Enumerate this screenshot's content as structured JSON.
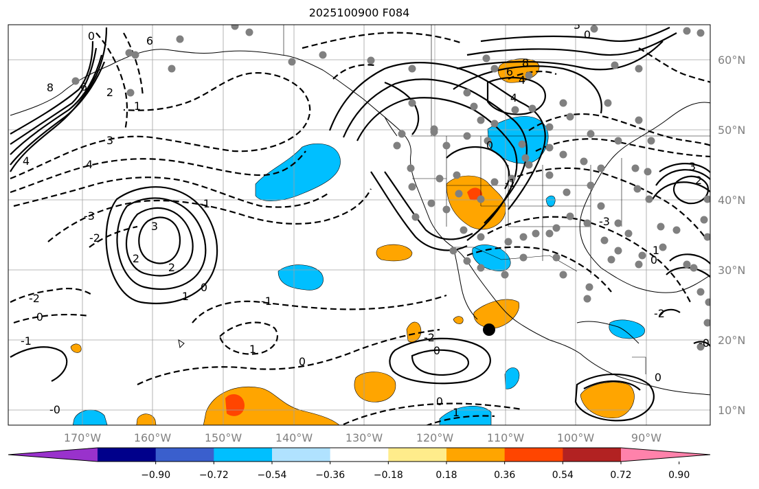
{
  "title": "2025100900 F084",
  "map": {
    "lon_labels": [
      "170°W",
      "160°W",
      "150°W",
      "140°W",
      "130°W",
      "120°W",
      "110°W",
      "100°W",
      "90°W"
    ],
    "lat_labels": [
      "60°N",
      "50°N",
      "40°N",
      "30°N",
      "20°N",
      "10°N"
    ],
    "contour_labels": [
      "0",
      "6",
      "8",
      "6",
      "4",
      "2",
      "1",
      "4",
      "3",
      "2",
      "0",
      "1",
      "2",
      "3",
      "-3",
      "-2",
      "-1",
      "-0",
      "-2",
      "-1",
      "1",
      "0",
      "-0",
      "-1",
      "-2",
      "0",
      "0",
      "1",
      "0",
      "-1",
      "4",
      "3",
      "0",
      "8",
      "6",
      "4",
      "3",
      "2",
      "1",
      "0",
      "-3",
      "-2",
      "-0",
      "0"
    ]
  },
  "colorbar": {
    "labels": [
      "−0.90",
      "−0.72",
      "−0.54",
      "−0.36",
      "−0.18",
      "0.18",
      "0.36",
      "0.54",
      "0.72",
      "0.90"
    ],
    "colors": [
      "#9932cc",
      "#00008b",
      "#3a5fcd",
      "#00bfff",
      "#b0e2ff",
      "#ffffff",
      "#ffec8b",
      "#ffa500",
      "#ff4500",
      "#b22222",
      "#ff82ab"
    ]
  },
  "shade_colors": {
    "neg": "#00bfff",
    "pos": "#ffa500",
    "pos_high": "#ff4500"
  }
}
